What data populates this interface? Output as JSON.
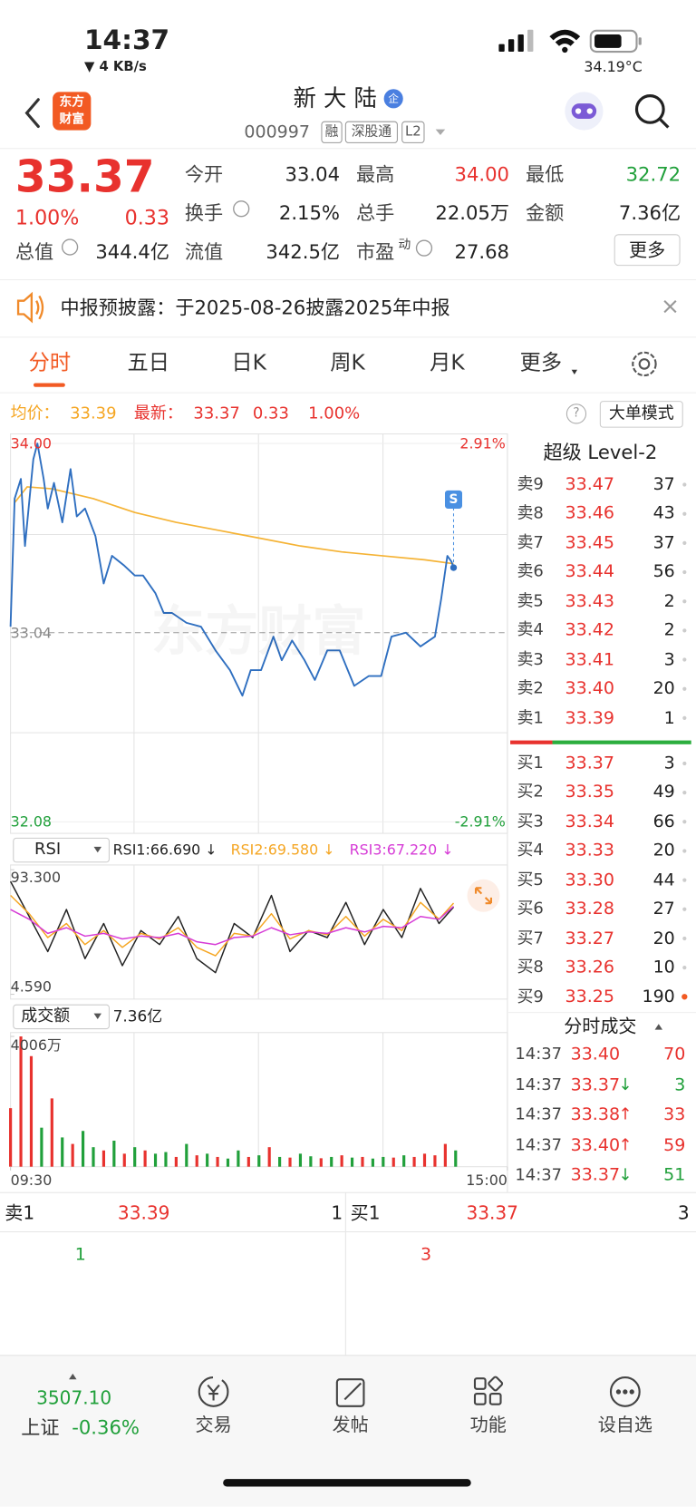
{
  "status": {
    "time": "14:37",
    "network": "▼ 4 KB/s",
    "temperature": "34.19°C"
  },
  "header": {
    "logo": [
      "东方",
      "财富"
    ],
    "name": "新 大 陆",
    "badge": "企",
    "code": "000997",
    "tags": [
      "融",
      "深股通",
      "L2"
    ]
  },
  "quote": {
    "price": "33.37",
    "change_pct": "1.00%",
    "change": "0.33",
    "total_value_label": "总值",
    "total_value": "344.4亿",
    "stats": [
      [
        {
          "label": "今开",
          "value": "33.04"
        },
        {
          "label": "最高",
          "value": "34.00",
          "color": "#e8322e"
        },
        {
          "label": "最低",
          "value": "32.72",
          "color": "#21a03b"
        }
      ],
      [
        {
          "label": "换手",
          "value": "2.15%"
        },
        {
          "label": "总手",
          "value": "22.05万"
        },
        {
          "label": "金额",
          "value": "7.36亿"
        }
      ],
      [
        {
          "label": "流值",
          "value": "342.5亿"
        },
        {
          "label": "市盈",
          "sup": "动",
          "value": "27.68"
        }
      ]
    ],
    "more": "更多"
  },
  "notice": {
    "text": "中报预披露：于2025-08-26披露2025年中报"
  },
  "tabs": [
    "分时",
    "五日",
    "日K",
    "周K",
    "月K",
    "更多"
  ],
  "info": {
    "avg_label": "均价：",
    "avg": "33.39",
    "last_label": "最新：",
    "last": "33.37",
    "change": "0.33",
    "change_pct": "1.00%",
    "help": "?",
    "mode": "大单模式"
  },
  "intraday": {
    "watermark": "东方财富",
    "marker": "S",
    "xlim": [
      0,
      240
    ],
    "ylim": [
      32.08,
      34.0
    ],
    "yticks": [
      {
        "value": 34.0,
        "label": "34.00"
      },
      33.04,
      32.08
    ],
    "ytick_colors": [
      "#e8322e",
      "#888888",
      "#21a03b"
    ],
    "y2lim": [
      -2.91,
      2.91
    ],
    "y2ticks": [
      {
        "value": 2.91,
        "label": "2.91%"
      },
      {
        "value": -2.91,
        "label": "-2.91%"
      }
    ],
    "y2tick_colors": [
      "#e8322e",
      "#21a03b"
    ],
    "price": {
      "color": "#2f6fc0",
      "x": [
        0,
        2,
        5,
        7,
        11,
        13,
        16,
        18,
        21,
        25,
        29,
        32,
        36,
        41,
        45,
        49,
        55,
        60,
        64,
        70,
        74,
        78,
        85,
        92,
        99,
        106,
        112,
        116,
        121,
        127,
        131,
        136,
        142,
        147,
        153,
        159,
        166,
        173,
        179,
        184,
        191,
        198,
        205,
        208,
        211,
        213,
        214
      ],
      "values": [
        33.07,
        33.72,
        33.82,
        33.48,
        33.92,
        34.0,
        33.82,
        33.67,
        33.8,
        33.6,
        33.87,
        33.63,
        33.67,
        33.53,
        33.29,
        33.43,
        33.38,
        33.33,
        33.33,
        33.24,
        33.14,
        33.14,
        33.09,
        33.07,
        32.95,
        32.85,
        32.72,
        32.85,
        32.85,
        33.02,
        32.9,
        33.0,
        32.9,
        32.8,
        32.95,
        32.95,
        32.77,
        32.82,
        32.82,
        33.02,
        33.04,
        32.97,
        33.02,
        33.21,
        33.43,
        33.4,
        33.37
      ]
    },
    "average": {
      "color": "#f5b335",
      "x": [
        2,
        8,
        20,
        40,
        60,
        80,
        100,
        120,
        140,
        160,
        180,
        200,
        214
      ],
      "values": [
        33.7,
        33.78,
        33.77,
        33.72,
        33.65,
        33.6,
        33.56,
        33.52,
        33.48,
        33.45,
        33.43,
        33.41,
        33.39
      ]
    }
  },
  "rsi": {
    "title": "RSI",
    "xlim": [
      0,
      240
    ],
    "ylim": [
      4.59,
      93.3
    ],
    "yticks": [
      {
        "value": 93.3,
        "label": "93.300"
      },
      {
        "value": 4.59,
        "label": "4.590"
      }
    ],
    "x": [
      0,
      9,
      18,
      27,
      36,
      45,
      54,
      63,
      72,
      81,
      90,
      99,
      108,
      117,
      126,
      135,
      144,
      153,
      162,
      171,
      180,
      189,
      198,
      207,
      214
    ],
    "series": [
      {
        "label": "RSI1:66.690 ↓",
        "color": "#222222",
        "values": [
          85,
          60,
          35,
          65,
          30,
          55,
          25,
          50,
          40,
          60,
          30,
          20,
          55,
          45,
          75,
          35,
          50,
          45,
          70,
          40,
          65,
          45,
          80,
          55,
          66.69
        ]
      },
      {
        "label": "RSI2:69.580 ↓",
        "color": "#f5a623",
        "values": [
          75,
          62,
          45,
          55,
          40,
          50,
          38,
          48,
          44,
          52,
          38,
          32,
          48,
          46,
          62,
          44,
          50,
          47,
          60,
          46,
          58,
          50,
          70,
          58,
          69.58
        ]
      },
      {
        "label": "RSI3:67.220 ↓",
        "color": "#d63bd6",
        "values": [
          65,
          58,
          48,
          52,
          46,
          48,
          44,
          46,
          45,
          48,
          42,
          40,
          45,
          46,
          52,
          47,
          49,
          48,
          52,
          49,
          53,
          52,
          60,
          58,
          67.22
        ]
      }
    ]
  },
  "volume": {
    "title": "成交额",
    "total": "7.36亿",
    "xlim": [
      0,
      240
    ],
    "xticks": [
      {
        "value": 0,
        "label": "09:30"
      },
      {
        "value": 240,
        "label": "15:00"
      }
    ],
    "ylim": [
      0,
      4006
    ],
    "yticks": [
      {
        "value": 4006,
        "label": "4006万"
      }
    ],
    "up_color": "#e8322e",
    "down_color": "#21a03b",
    "x": [
      0,
      5,
      10,
      15,
      20,
      25,
      30,
      35,
      40,
      45,
      50,
      55,
      60,
      65,
      70,
      75,
      80,
      85,
      90,
      95,
      100,
      105,
      110,
      115,
      120,
      125,
      130,
      135,
      140,
      145,
      150,
      155,
      160,
      165,
      170,
      175,
      180,
      185,
      190,
      195,
      200,
      205,
      210,
      215
    ],
    "values": [
      1800,
      4006,
      3400,
      1200,
      2100,
      900,
      700,
      1100,
      600,
      500,
      800,
      400,
      600,
      500,
      400,
      450,
      300,
      700,
      350,
      400,
      300,
      250,
      500,
      300,
      350,
      600,
      300,
      280,
      400,
      320,
      260,
      300,
      350,
      280,
      300,
      250,
      300,
      280,
      350,
      300,
      400,
      350,
      700,
      500
    ],
    "up": [
      true,
      true,
      true,
      false,
      true,
      false,
      true,
      false,
      false,
      true,
      false,
      true,
      false,
      true,
      false,
      false,
      true,
      false,
      true,
      false,
      true,
      false,
      false,
      true,
      false,
      true,
      false,
      true,
      false,
      false,
      true,
      false,
      true,
      false,
      true,
      false,
      false,
      true,
      false,
      true,
      true,
      true,
      true,
      false
    ]
  },
  "level2": {
    "title": "超级 Level-2",
    "asks": [
      {
        "label": "卖9",
        "price": "33.47",
        "volume": "37"
      },
      {
        "label": "卖8",
        "price": "33.46",
        "volume": "43"
      },
      {
        "label": "卖7",
        "price": "33.45",
        "volume": "37"
      },
      {
        "label": "卖6",
        "price": "33.44",
        "volume": "56"
      },
      {
        "label": "卖5",
        "price": "33.43",
        "volume": "2"
      },
      {
        "label": "卖4",
        "price": "33.42",
        "volume": "2"
      },
      {
        "label": "卖3",
        "price": "33.41",
        "volume": "3"
      },
      {
        "label": "卖2",
        "price": "33.40",
        "volume": "20"
      },
      {
        "label": "卖1",
        "price": "33.39",
        "volume": "1"
      }
    ],
    "bids": [
      {
        "label": "买1",
        "price": "33.37",
        "volume": "3"
      },
      {
        "label": "买2",
        "price": "33.35",
        "volume": "49"
      },
      {
        "label": "买3",
        "price": "33.34",
        "volume": "66"
      },
      {
        "label": "买4",
        "price": "33.33",
        "volume": "20"
      },
      {
        "label": "买5",
        "price": "33.30",
        "volume": "44"
      },
      {
        "label": "买6",
        "price": "33.28",
        "volume": "27"
      },
      {
        "label": "买7",
        "price": "33.27",
        "volume": "20"
      },
      {
        "label": "买8",
        "price": "33.26",
        "volume": "10"
      },
      {
        "label": "买9",
        "price": "33.25",
        "volume": "190"
      }
    ]
  },
  "trades": {
    "title": "分时成交",
    "rows": [
      {
        "time": "14:37",
        "price": "33.40",
        "volume": "70",
        "color": "#e8322e"
      },
      {
        "time": "14:37",
        "price": "33.37",
        "arrow": "↓",
        "volume": "3",
        "color": "#21a03b"
      },
      {
        "time": "14:37",
        "price": "33.38",
        "arrow": "↑",
        "volume": "33",
        "color": "#e8322e"
      },
      {
        "time": "14:37",
        "price": "33.40",
        "arrow": "↑",
        "volume": "59",
        "color": "#e8322e"
      },
      {
        "time": "14:37",
        "price": "33.37",
        "arrow": "↓",
        "volume": "51",
        "color": "#21a03b"
      }
    ]
  },
  "best": {
    "ask_label": "卖1",
    "ask_price": "33.39",
    "ask_volume": "1",
    "bid_label": "买1",
    "bid_price": "33.37",
    "bid_volume": "3",
    "ask_count": "1",
    "bid_count": "3"
  },
  "footer": {
    "index_value": "3507.10",
    "index_name": "上证",
    "index_change": "-0.36%",
    "nav": [
      "交易",
      "发帖",
      "功能",
      "设自选"
    ]
  }
}
